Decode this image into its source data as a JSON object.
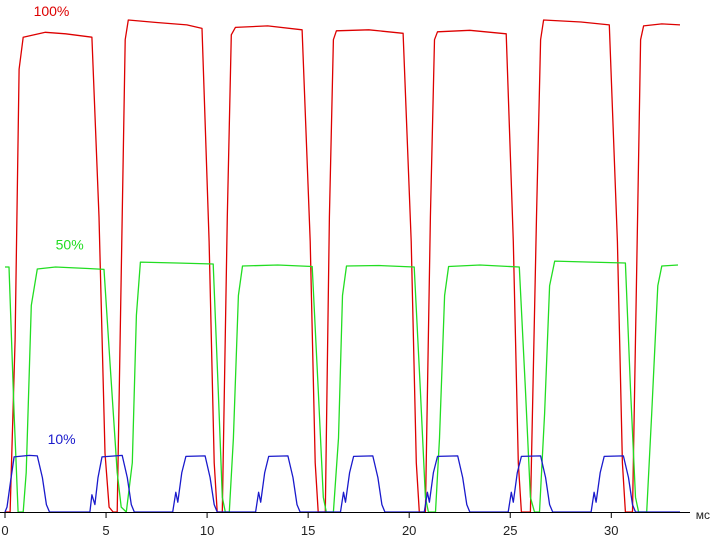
{
  "chart_data": {
    "type": "line",
    "xlabel": "",
    "x_unit": "мс",
    "ylabel": "",
    "xlim": [
      0,
      33.4
    ],
    "ylim": [
      0,
      100
    ],
    "grid": false,
    "x_ticks": [
      0,
      5,
      10,
      15,
      20,
      25,
      30
    ],
    "series": [
      {
        "name": "100%",
        "color": "#dd0000",
        "points": [
          [
            0.0,
            0.0
          ],
          [
            0.25,
            0.0
          ],
          [
            0.5,
            35.0
          ],
          [
            0.7,
            90.0
          ],
          [
            0.9,
            96.5
          ],
          [
            2.0,
            97.5
          ],
          [
            3.0,
            97.2
          ],
          [
            4.3,
            96.5
          ],
          [
            4.65,
            60.0
          ],
          [
            4.95,
            12.0
          ],
          [
            5.15,
            1.0
          ],
          [
            5.35,
            0.0
          ],
          [
            5.55,
            0.0
          ],
          [
            5.8,
            60.0
          ],
          [
            5.95,
            96.0
          ],
          [
            6.1,
            100.0
          ],
          [
            7.5,
            99.5
          ],
          [
            9.0,
            99.0
          ],
          [
            9.75,
            98.3
          ],
          [
            10.1,
            55.0
          ],
          [
            10.35,
            10.0
          ],
          [
            10.5,
            0.0
          ],
          [
            10.75,
            0.0
          ],
          [
            11.0,
            60.0
          ],
          [
            11.2,
            97.0
          ],
          [
            11.4,
            98.5
          ],
          [
            13.0,
            98.8
          ],
          [
            14.7,
            98.0
          ],
          [
            15.1,
            55.0
          ],
          [
            15.35,
            10.0
          ],
          [
            15.5,
            0.0
          ],
          [
            15.85,
            0.0
          ],
          [
            16.05,
            60.0
          ],
          [
            16.25,
            96.0
          ],
          [
            16.4,
            97.8
          ],
          [
            18.0,
            98.0
          ],
          [
            19.7,
            97.3
          ],
          [
            20.1,
            55.0
          ],
          [
            20.35,
            10.0
          ],
          [
            20.5,
            0.0
          ],
          [
            20.8,
            0.0
          ],
          [
            21.05,
            60.0
          ],
          [
            21.25,
            96.0
          ],
          [
            21.4,
            97.6
          ],
          [
            23.0,
            97.9
          ],
          [
            24.8,
            97.2
          ],
          [
            25.15,
            55.0
          ],
          [
            25.4,
            10.0
          ],
          [
            25.55,
            0.0
          ],
          [
            26.0,
            0.0
          ],
          [
            26.3,
            60.0
          ],
          [
            26.5,
            96.0
          ],
          [
            26.65,
            100.0
          ],
          [
            28.5,
            99.6
          ],
          [
            29.9,
            99.0
          ],
          [
            30.3,
            55.0
          ],
          [
            30.55,
            10.0
          ],
          [
            30.7,
            0.0
          ],
          [
            31.05,
            0.0
          ],
          [
            31.3,
            60.0
          ],
          [
            31.45,
            96.0
          ],
          [
            31.6,
            98.8
          ],
          [
            32.5,
            99.2
          ],
          [
            33.4,
            99.0
          ]
        ]
      },
      {
        "name": "50%",
        "color": "#22dd22",
        "points": [
          [
            0.0,
            49.8
          ],
          [
            0.2,
            49.8
          ],
          [
            0.45,
            20.0
          ],
          [
            0.65,
            0.0
          ],
          [
            0.9,
            0.0
          ],
          [
            1.05,
            8.0
          ],
          [
            1.3,
            42.0
          ],
          [
            1.6,
            49.4
          ],
          [
            2.5,
            49.8
          ],
          [
            4.1,
            49.5
          ],
          [
            4.9,
            49.3
          ],
          [
            5.2,
            30.0
          ],
          [
            5.55,
            8.0
          ],
          [
            5.75,
            1.0
          ],
          [
            6.0,
            0.0
          ],
          [
            6.3,
            10.0
          ],
          [
            6.5,
            40.0
          ],
          [
            6.7,
            50.8
          ],
          [
            8.5,
            50.6
          ],
          [
            10.3,
            50.4
          ],
          [
            10.55,
            25.0
          ],
          [
            10.75,
            3.0
          ],
          [
            10.9,
            0.0
          ],
          [
            11.1,
            0.0
          ],
          [
            11.3,
            15.0
          ],
          [
            11.55,
            44.0
          ],
          [
            11.75,
            50.0
          ],
          [
            13.5,
            50.2
          ],
          [
            15.2,
            49.9
          ],
          [
            15.5,
            25.0
          ],
          [
            15.75,
            3.0
          ],
          [
            15.9,
            0.0
          ],
          [
            16.25,
            0.0
          ],
          [
            16.5,
            15.0
          ],
          [
            16.7,
            44.0
          ],
          [
            16.9,
            50.0
          ],
          [
            18.5,
            50.1
          ],
          [
            20.25,
            49.8
          ],
          [
            20.55,
            25.0
          ],
          [
            20.8,
            3.0
          ],
          [
            20.95,
            0.0
          ],
          [
            21.3,
            0.0
          ],
          [
            21.5,
            15.0
          ],
          [
            21.75,
            44.0
          ],
          [
            21.95,
            49.9
          ],
          [
            23.5,
            50.2
          ],
          [
            25.45,
            49.8
          ],
          [
            25.75,
            25.0
          ],
          [
            26.0,
            3.0
          ],
          [
            26.2,
            0.0
          ],
          [
            26.45,
            0.0
          ],
          [
            26.7,
            20.0
          ],
          [
            26.95,
            46.0
          ],
          [
            27.2,
            51.0
          ],
          [
            29.0,
            50.8
          ],
          [
            30.7,
            50.6
          ],
          [
            30.95,
            25.0
          ],
          [
            31.2,
            3.0
          ],
          [
            31.35,
            0.0
          ],
          [
            31.75,
            0.0
          ],
          [
            32.0,
            20.0
          ],
          [
            32.3,
            46.0
          ],
          [
            32.5,
            50.0
          ],
          [
            33.3,
            50.2
          ]
        ]
      },
      {
        "name": "10%",
        "color": "#1a1acc",
        "points": [
          [
            0.0,
            0.0
          ],
          [
            0.1,
            1.0
          ],
          [
            0.3,
            7.0
          ],
          [
            0.45,
            11.2
          ],
          [
            1.2,
            11.5
          ],
          [
            1.6,
            11.4
          ],
          [
            1.85,
            7.0
          ],
          [
            2.05,
            1.5
          ],
          [
            2.2,
            0.0
          ],
          [
            4.2,
            0.0
          ],
          [
            4.3,
            3.5
          ],
          [
            4.45,
            1.5
          ],
          [
            4.6,
            7.0
          ],
          [
            4.8,
            11.2
          ],
          [
            5.8,
            11.5
          ],
          [
            6.05,
            7.0
          ],
          [
            6.25,
            1.5
          ],
          [
            6.4,
            0.0
          ],
          [
            8.3,
            0.0
          ],
          [
            8.45,
            4.0
          ],
          [
            8.55,
            2.0
          ],
          [
            8.75,
            8.0
          ],
          [
            8.95,
            11.3
          ],
          [
            9.9,
            11.4
          ],
          [
            10.15,
            7.0
          ],
          [
            10.35,
            1.5
          ],
          [
            10.5,
            0.0
          ],
          [
            12.4,
            0.0
          ],
          [
            12.55,
            4.0
          ],
          [
            12.65,
            2.0
          ],
          [
            12.85,
            8.0
          ],
          [
            13.05,
            11.3
          ],
          [
            14.0,
            11.4
          ],
          [
            14.25,
            7.0
          ],
          [
            14.45,
            1.5
          ],
          [
            14.6,
            0.0
          ],
          [
            16.6,
            0.0
          ],
          [
            16.75,
            4.0
          ],
          [
            16.85,
            2.0
          ],
          [
            17.05,
            8.0
          ],
          [
            17.25,
            11.3
          ],
          [
            18.2,
            11.4
          ],
          [
            18.45,
            7.0
          ],
          [
            18.65,
            1.5
          ],
          [
            18.8,
            0.0
          ],
          [
            20.75,
            0.0
          ],
          [
            20.9,
            4.0
          ],
          [
            21.0,
            2.0
          ],
          [
            21.2,
            8.0
          ],
          [
            21.4,
            11.3
          ],
          [
            22.4,
            11.4
          ],
          [
            22.65,
            7.0
          ],
          [
            22.85,
            1.5
          ],
          [
            23.0,
            0.0
          ],
          [
            24.9,
            0.0
          ],
          [
            25.05,
            4.0
          ],
          [
            25.15,
            2.0
          ],
          [
            25.35,
            8.0
          ],
          [
            25.55,
            11.3
          ],
          [
            26.5,
            11.4
          ],
          [
            26.75,
            7.0
          ],
          [
            26.95,
            1.5
          ],
          [
            27.1,
            0.0
          ],
          [
            29.0,
            0.0
          ],
          [
            29.15,
            4.0
          ],
          [
            29.25,
            2.0
          ],
          [
            29.45,
            8.0
          ],
          [
            29.65,
            11.3
          ],
          [
            30.6,
            11.4
          ],
          [
            30.85,
            7.0
          ],
          [
            31.05,
            1.5
          ],
          [
            31.2,
            0.0
          ],
          [
            33.4,
            0.0
          ]
        ]
      }
    ]
  }
}
